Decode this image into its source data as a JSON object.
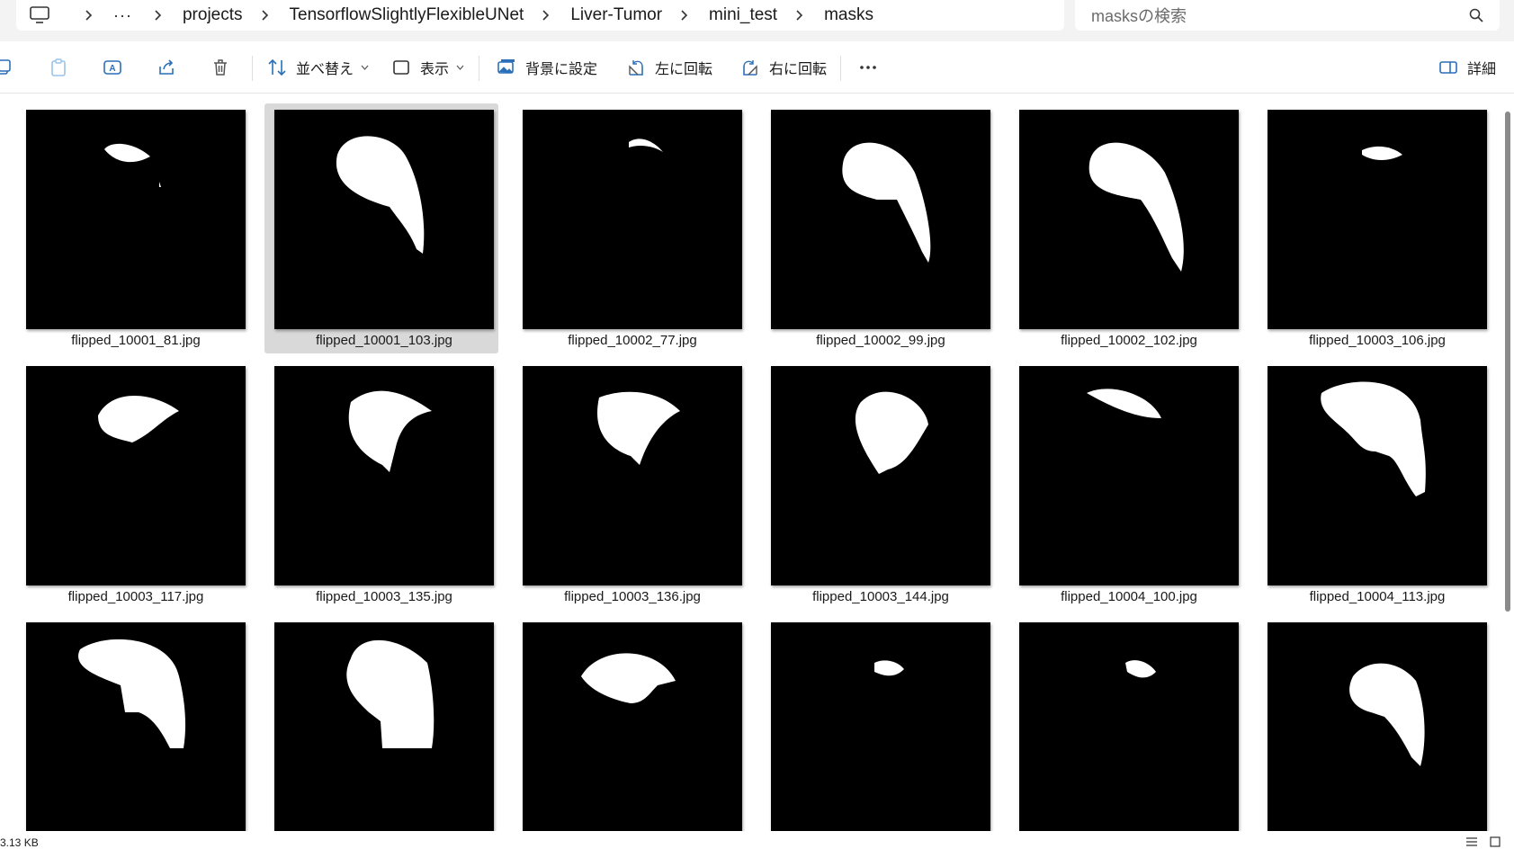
{
  "breadcrumb": {
    "items": [
      "projects",
      "TensorflowSlightlyFlexibleUNet",
      "Liver-Tumor",
      "mini_test",
      "masks"
    ]
  },
  "search": {
    "placeholder": "masksの検索"
  },
  "toolbar": {
    "sort_label": "並べ替え",
    "view_label": "表示",
    "set_background_label": "背景に設定",
    "rotate_left_label": "左に回転",
    "rotate_right_label": "右に回転",
    "details_label": "詳細"
  },
  "files": [
    {
      "name": "flipped_10001_81.jpg"
    },
    {
      "name": "flipped_10001_103.jpg",
      "selected": true
    },
    {
      "name": "flipped_10002_77.jpg"
    },
    {
      "name": "flipped_10002_99.jpg"
    },
    {
      "name": "flipped_10002_102.jpg"
    },
    {
      "name": "flipped_10003_106.jpg"
    },
    {
      "name": "flipped_10003_117.jpg"
    },
    {
      "name": "flipped_10003_135.jpg"
    },
    {
      "name": "flipped_10003_136.jpg"
    },
    {
      "name": "flipped_10003_144.jpg"
    },
    {
      "name": "flipped_10004_100.jpg"
    },
    {
      "name": "flipped_10004_113.jpg"
    },
    {
      "name": ""
    },
    {
      "name": ""
    },
    {
      "name": ""
    },
    {
      "name": ""
    },
    {
      "name": ""
    },
    {
      "name": ""
    }
  ],
  "status": {
    "text": "3.13 KB"
  }
}
